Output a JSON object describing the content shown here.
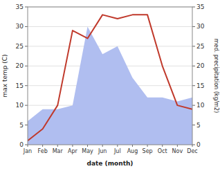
{
  "chart_data": {
    "type": "line",
    "xlabel": "date (month)",
    "ylabel": "max temp (C)",
    "y2label": "med. precipitation (kg/m2)",
    "categories": [
      "Jan",
      "Feb",
      "Mar",
      "Apr",
      "May",
      "Jun",
      "Jul",
      "Aug",
      "Sep",
      "Oct",
      "Nov",
      "Dec"
    ],
    "series": [
      {
        "type": "area",
        "color": "#b0bef0",
        "values": [
          6,
          9,
          9,
          10,
          30,
          23,
          25,
          17,
          12,
          12,
          11,
          12
        ]
      },
      {
        "type": "line",
        "color": "#c0392b",
        "axis": "y2",
        "values": [
          1,
          4,
          10,
          29,
          27,
          33,
          32,
          33,
          33,
          20,
          10,
          9
        ]
      }
    ],
    "ylim": [
      0,
      35
    ],
    "yticks": [
      0,
      5,
      10,
      15,
      20,
      25,
      30,
      35
    ],
    "y2lim": [
      0,
      35
    ],
    "y2ticks": [
      0,
      5,
      10,
      15,
      20,
      25,
      30,
      35
    ],
    "grid": true
  }
}
